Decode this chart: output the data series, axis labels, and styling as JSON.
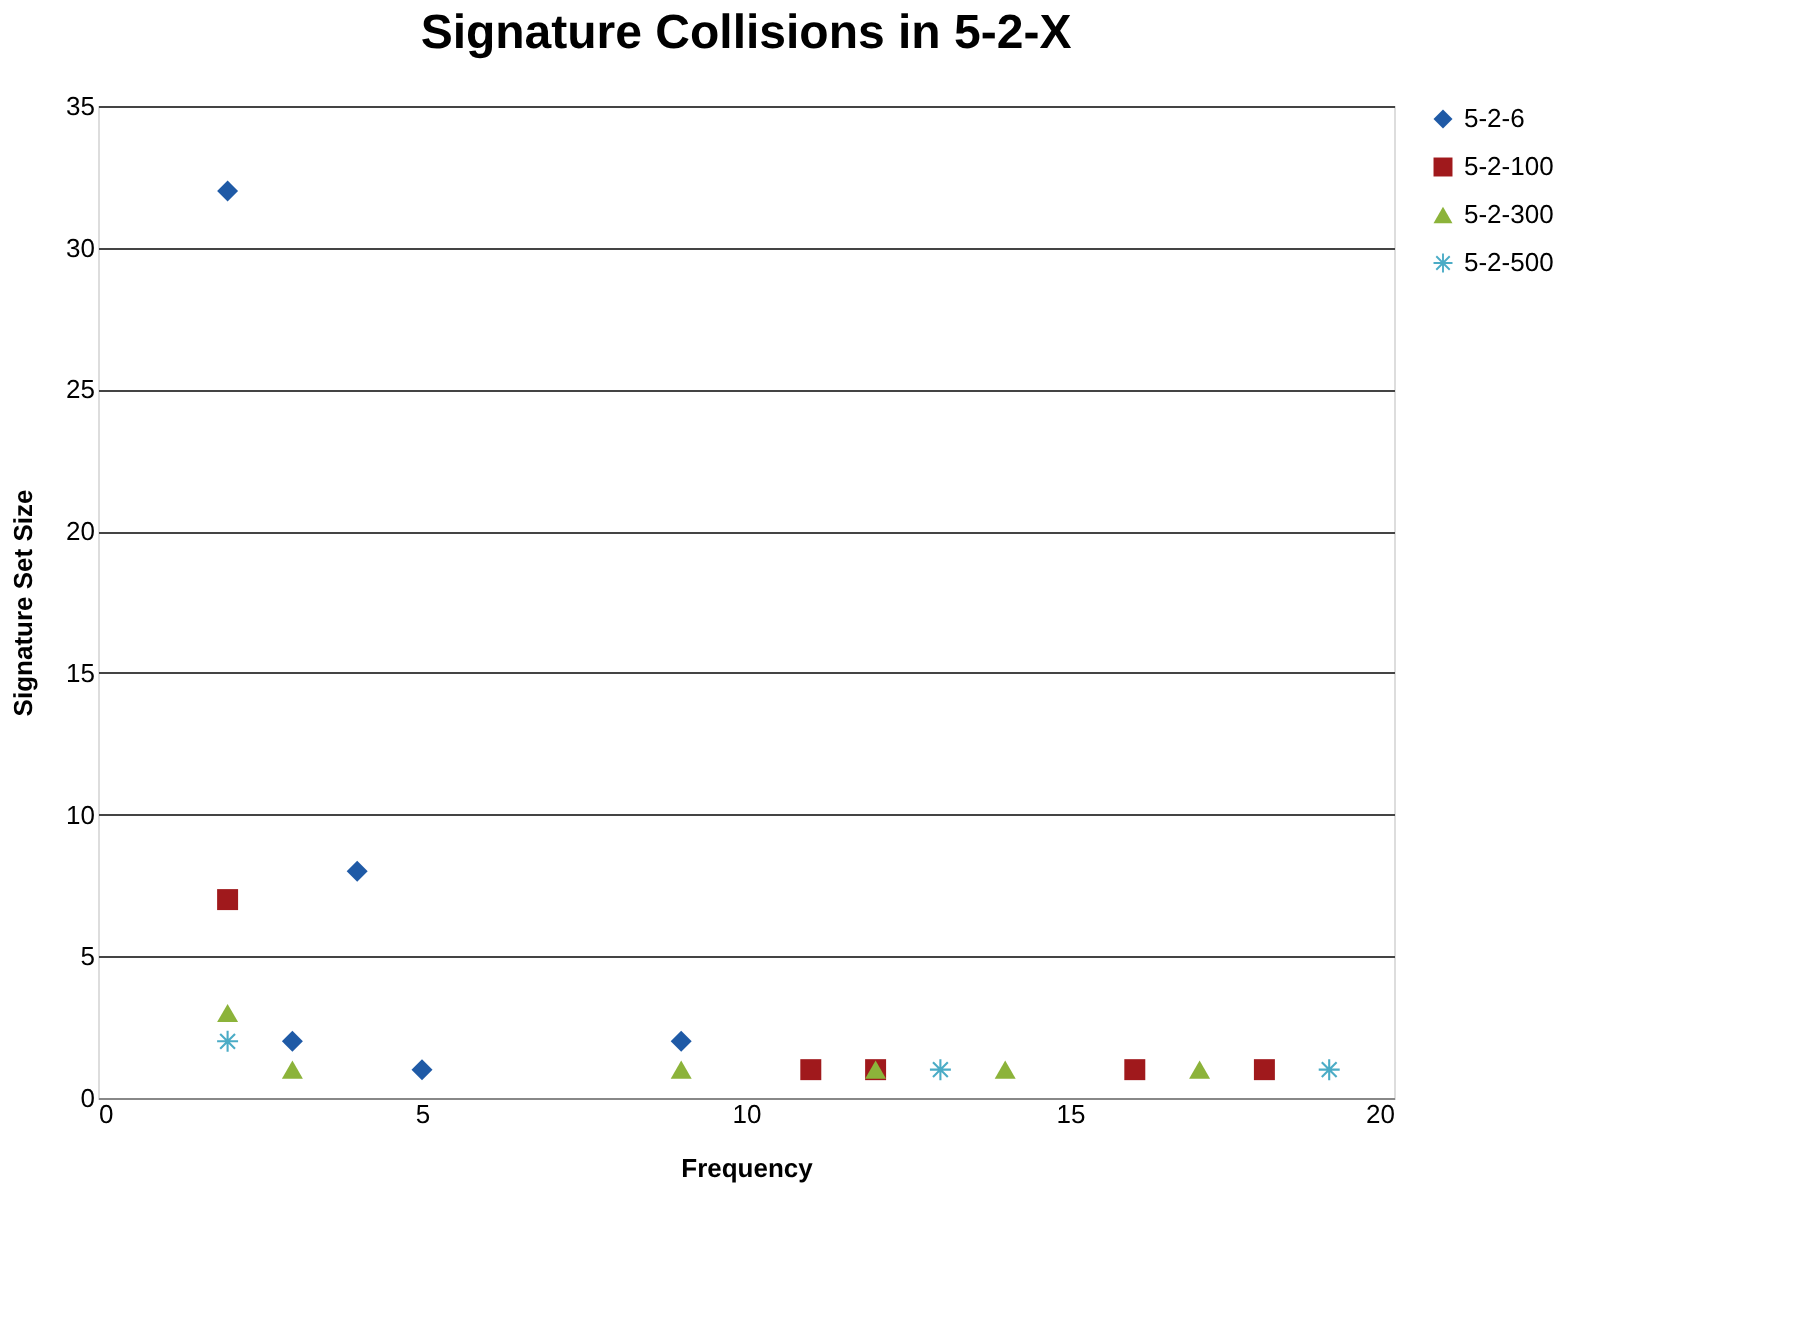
{
  "chart_data": {
    "type": "scatter",
    "title": "Signature Collisions in 5-2-X",
    "xlabel": "Frequency",
    "ylabel": "Signature Set Size",
    "xlim": [
      0,
      20
    ],
    "xticks": [
      0,
      5,
      10,
      15,
      20
    ],
    "ylim": [
      0,
      35
    ],
    "yticks": [
      0,
      5,
      10,
      15,
      20,
      25,
      30,
      35
    ],
    "grid": "y",
    "legend": "right",
    "series": [
      {
        "name": "5-2-6",
        "color": "#1f5aa6",
        "marker": "diamond",
        "x": [
          2,
          3,
          4,
          5,
          9
        ],
        "values": [
          32,
          2,
          8,
          1,
          2
        ]
      },
      {
        "name": "5-2-100",
        "color": "#a0191c",
        "marker": "square",
        "x": [
          2,
          11,
          12,
          16,
          18
        ],
        "values": [
          7,
          1,
          1,
          1,
          1
        ]
      },
      {
        "name": "5-2-300",
        "color": "#8cb33a",
        "marker": "triangle",
        "x": [
          2,
          3,
          9,
          12,
          14,
          17
        ],
        "values": [
          3,
          1,
          1,
          1,
          1,
          1
        ]
      },
      {
        "name": "5-2-500",
        "color": "#4bacc6",
        "marker": "cross",
        "x": [
          2,
          13,
          19
        ],
        "values": [
          2,
          1,
          1
        ]
      }
    ]
  }
}
